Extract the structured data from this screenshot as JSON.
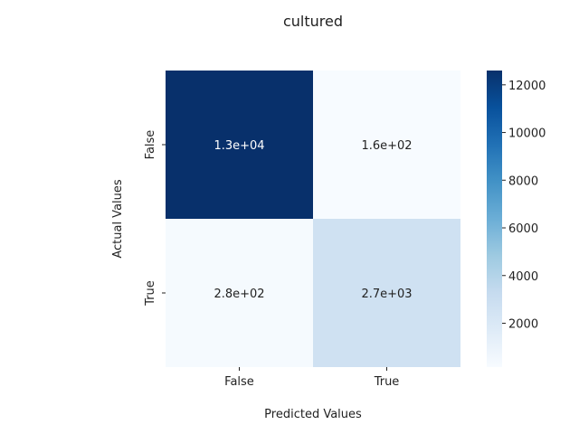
{
  "chart_data": {
    "type": "heatmap",
    "title": "cultured",
    "xlabel": "Predicted Values",
    "ylabel": "Actual Values",
    "x_categories": [
      "False",
      "True"
    ],
    "y_categories": [
      "False",
      "True"
    ],
    "values": [
      [
        12600,
        160
      ],
      [
        280,
        2700
      ]
    ],
    "annotations": [
      [
        "1.3e+04",
        "1.6e+02"
      ],
      [
        "2.8e+02",
        "2.7e+03"
      ]
    ],
    "colormap": "Blues",
    "colorbar": {
      "range": [
        160,
        12600
      ],
      "ticks": [
        2000,
        4000,
        6000,
        8000,
        10000,
        12000
      ],
      "tick_labels": [
        "2000",
        "4000",
        "6000",
        "8000",
        "10000",
        "12000"
      ]
    },
    "colors": {
      "low": "#f7fbff",
      "high": "#08306b"
    }
  }
}
